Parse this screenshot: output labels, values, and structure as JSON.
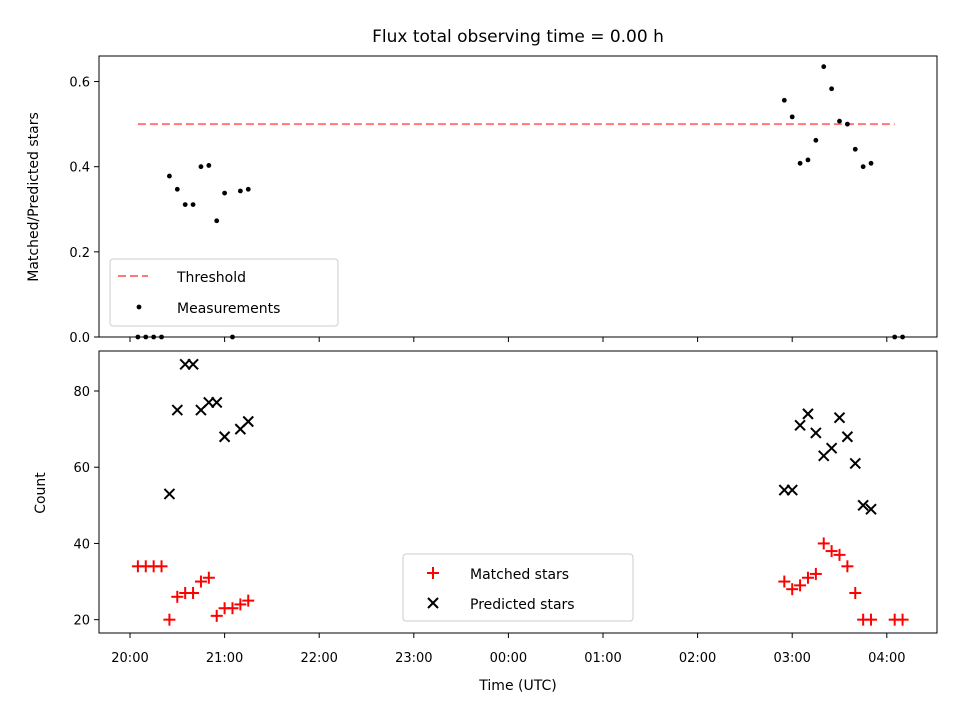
{
  "chart_data": [
    {
      "type": "scatter",
      "title": "Flux total observing time = 0.00 h",
      "ylabel": "Matched/Predicted stars",
      "ylim": [
        0,
        0.66
      ],
      "yticks": [
        0.0,
        0.2,
        0.4,
        0.6
      ],
      "ytick_labels": [
        "0.0",
        "0.2",
        "0.4",
        "0.6"
      ],
      "threshold": {
        "name": "Threshold",
        "value": 0.5,
        "x_range": [
          "20:05",
          "04:05"
        ],
        "color": "#ff7777"
      },
      "series": [
        {
          "name": "Measurements",
          "color": "#000000",
          "points": [
            [
              "20:05",
              0.0
            ],
            [
              "20:10",
              0.0
            ],
            [
              "20:15",
              0.0
            ],
            [
              "20:20",
              0.0
            ],
            [
              "20:25",
              0.378
            ],
            [
              "20:30",
              0.347
            ],
            [
              "20:35",
              0.311
            ],
            [
              "20:40",
              0.311
            ],
            [
              "20:45",
              0.4
            ],
            [
              "20:50",
              0.403
            ],
            [
              "20:55",
              0.273
            ],
            [
              "21:00",
              0.338
            ],
            [
              "21:05",
              0.0
            ],
            [
              "21:10",
              0.343
            ],
            [
              "21:15",
              0.347
            ],
            [
              "02:55",
              0.556
            ],
            [
              "03:00",
              0.517
            ],
            [
              "03:05",
              0.408
            ],
            [
              "03:10",
              0.416
            ],
            [
              "03:15",
              0.462
            ],
            [
              "03:20",
              0.635
            ],
            [
              "03:25",
              0.583
            ],
            [
              "03:30",
              0.507
            ],
            [
              "03:35",
              0.5
            ],
            [
              "03:40",
              0.441
            ],
            [
              "03:45",
              0.4
            ],
            [
              "03:50",
              0.408
            ],
            [
              "04:05",
              0.0
            ],
            [
              "04:10",
              0.0
            ]
          ]
        }
      ],
      "legend": {
        "placement": "lower-left",
        "entries": [
          "Threshold",
          "Measurements"
        ]
      }
    },
    {
      "type": "scatter",
      "xlabel": "Time (UTC)",
      "ylabel": "Count",
      "ylim": [
        16.5,
        90.5
      ],
      "yticks": [
        20,
        40,
        60,
        80
      ],
      "ytick_labels": [
        "20",
        "40",
        "60",
        "80"
      ],
      "x_tick_labels": [
        "20:00",
        "21:00",
        "22:00",
        "23:00",
        "00:00",
        "01:00",
        "02:00",
        "03:00",
        "04:00"
      ],
      "series": [
        {
          "name": "Matched stars",
          "color": "#ff0000",
          "marker": "+",
          "points": [
            [
              "20:05",
              34
            ],
            [
              "20:10",
              34
            ],
            [
              "20:15",
              34
            ],
            [
              "20:20",
              34
            ],
            [
              "20:25",
              20
            ],
            [
              "20:30",
              26
            ],
            [
              "20:35",
              27
            ],
            [
              "20:40",
              27
            ],
            [
              "20:45",
              30
            ],
            [
              "20:50",
              31
            ],
            [
              "20:55",
              21
            ],
            [
              "21:00",
              23
            ],
            [
              "21:05",
              23
            ],
            [
              "21:10",
              24
            ],
            [
              "21:15",
              25
            ],
            [
              "02:55",
              30
            ],
            [
              "03:00",
              28
            ],
            [
              "03:05",
              29
            ],
            [
              "03:10",
              31
            ],
            [
              "03:15",
              32
            ],
            [
              "03:20",
              40
            ],
            [
              "03:25",
              38
            ],
            [
              "03:30",
              37
            ],
            [
              "03:35",
              34
            ],
            [
              "03:40",
              27
            ],
            [
              "03:45",
              20
            ],
            [
              "03:50",
              20
            ],
            [
              "04:05",
              20
            ],
            [
              "04:10",
              20
            ]
          ]
        },
        {
          "name": "Predicted stars",
          "color": "#000000",
          "marker": "x",
          "points": [
            [
              "20:25",
              53
            ],
            [
              "20:30",
              75
            ],
            [
              "20:35",
              87
            ],
            [
              "20:40",
              87
            ],
            [
              "20:45",
              75
            ],
            [
              "20:50",
              77
            ],
            [
              "20:55",
              77
            ],
            [
              "21:00",
              68
            ],
            [
              "21:10",
              70
            ],
            [
              "21:15",
              72
            ],
            [
              "02:55",
              54
            ],
            [
              "03:00",
              54
            ],
            [
              "03:05",
              71
            ],
            [
              "03:10",
              74
            ],
            [
              "03:15",
              69
            ],
            [
              "03:20",
              63
            ],
            [
              "03:25",
              65
            ],
            [
              "03:30",
              73
            ],
            [
              "03:35",
              68
            ],
            [
              "03:40",
              61
            ],
            [
              "03:45",
              50
            ],
            [
              "03:50",
              49
            ]
          ]
        }
      ],
      "legend": {
        "placement": "lower-center",
        "entries": [
          "Matched stars",
          "Predicted stars"
        ]
      }
    }
  ]
}
